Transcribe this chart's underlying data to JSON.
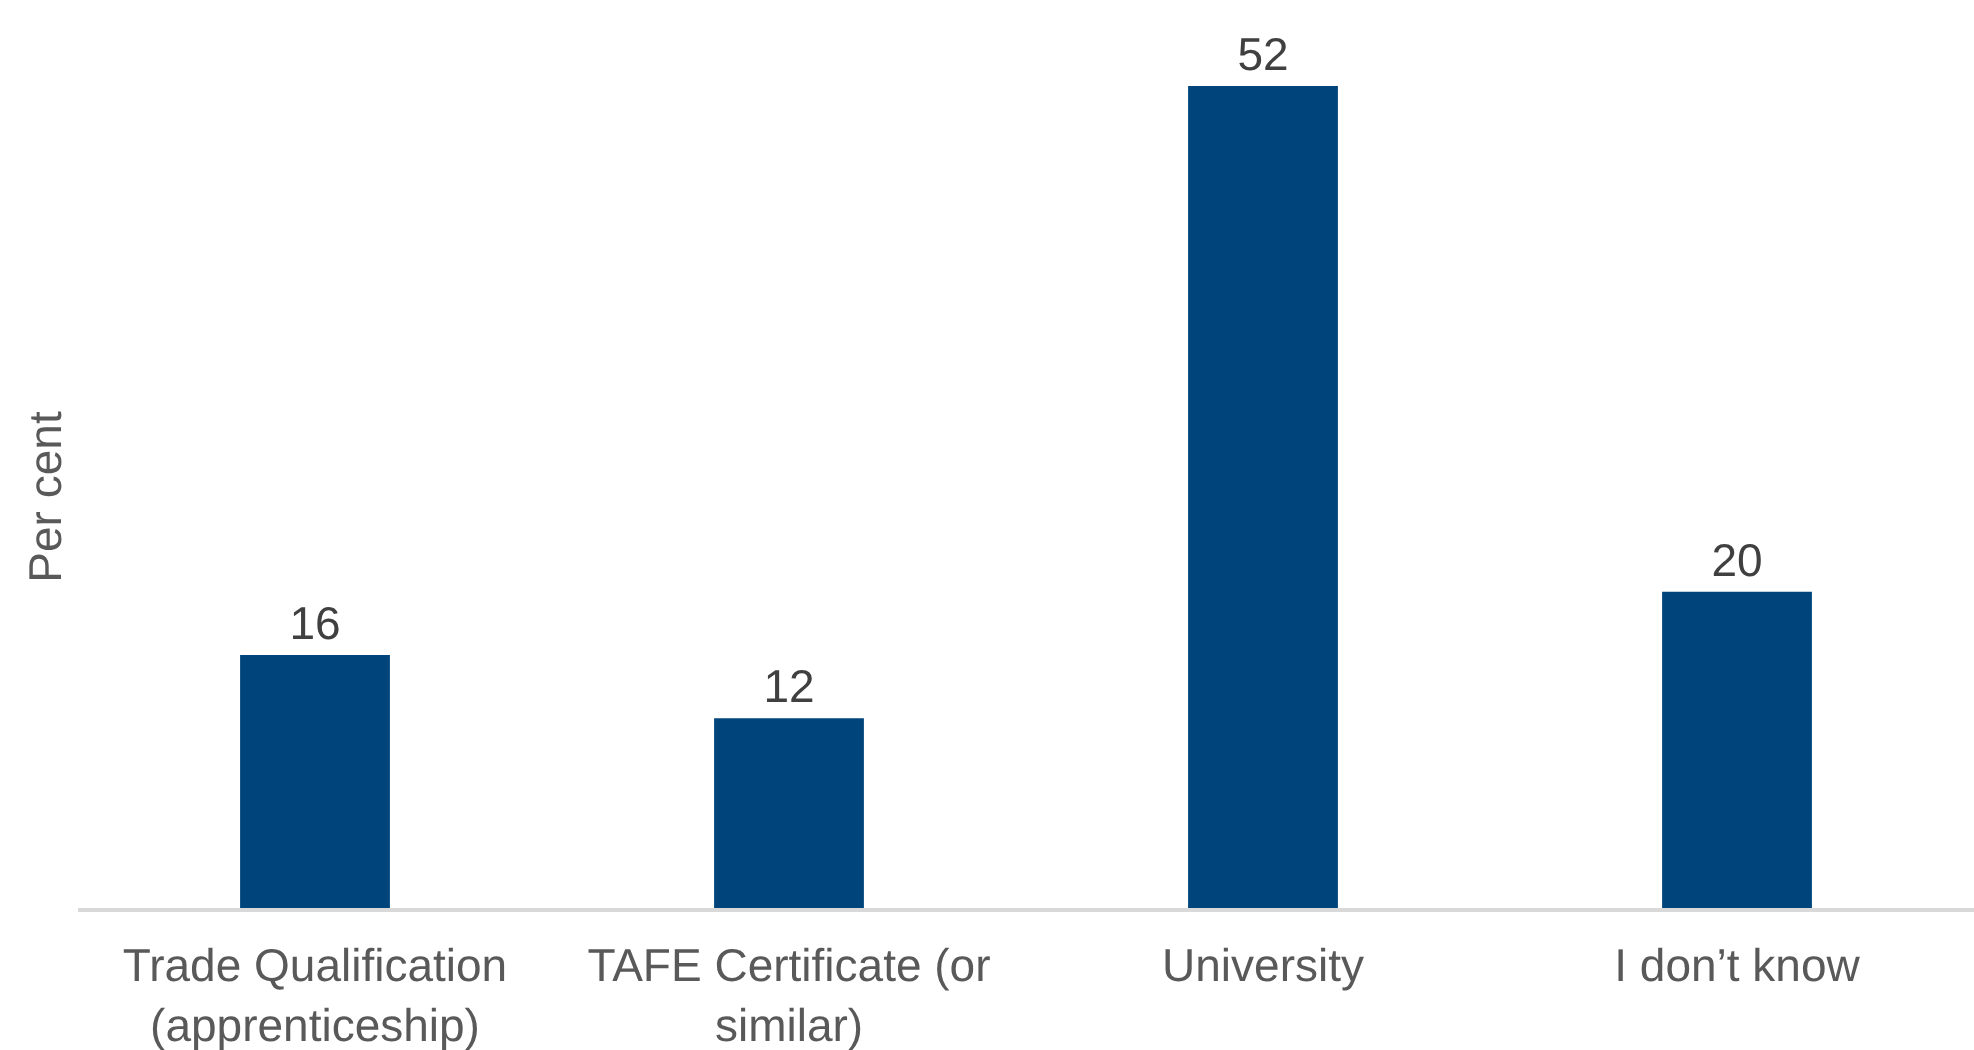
{
  "chart_data": {
    "type": "bar",
    "ylabel": "Per cent",
    "categories": [
      "Trade Qualification (apprenticeship)",
      "TAFE Certificate (or similar)",
      "University",
      "I don’t know"
    ],
    "values": [
      16,
      12,
      52,
      20
    ],
    "color": "#00447c",
    "ylim": [
      0,
      52
    ],
    "data_labels": true,
    "tick_labels": "x"
  }
}
